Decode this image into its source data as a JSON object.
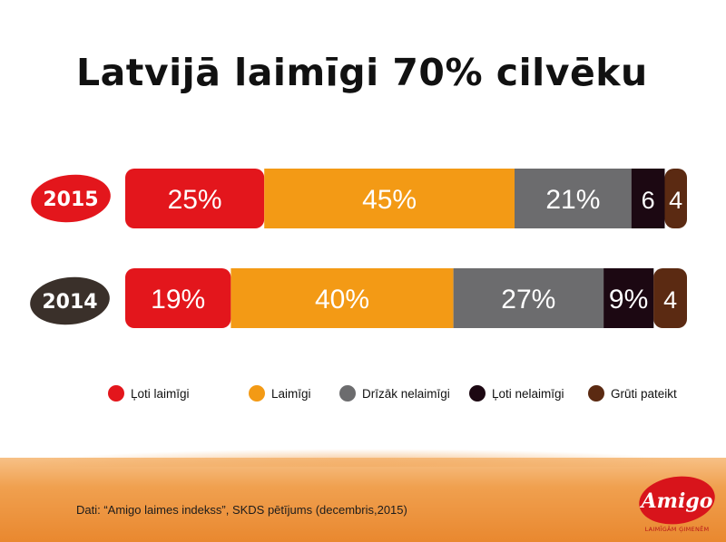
{
  "title": "Latvijā laimīgi 70% cilvēku",
  "source": "Dati: “Amigo laimes indekss”, SKDS pētījums (decembris,2015)",
  "logo": {
    "text": "Amigo",
    "tagline": "LAIMĪGĀM ĢIMENĒM"
  },
  "colors": {
    "loti_laimigi": "#e3161c",
    "laimigi": "#f39a15",
    "drizak_nelaimigi": "#6c6c6e",
    "loti_nelaimigi": "#1c0812",
    "gruti_pateikt": "#5b2a12",
    "badge_2015": "#e3161c",
    "badge_2014": "#3a302a"
  },
  "chart_data": {
    "type": "bar",
    "stacked": true,
    "orientation": "horizontal",
    "title": "Latvijā laimīgi 70% cilvēku",
    "categories": [
      "2015",
      "2014"
    ],
    "series": [
      {
        "name": "Ļoti laimīgi",
        "values": [
          25,
          19
        ],
        "labels": [
          "25%",
          "19%"
        ]
      },
      {
        "name": "Laimīgi",
        "values": [
          45,
          40
        ],
        "labels": [
          "45%",
          "40%"
        ]
      },
      {
        "name": "Drīzāk nelaimīgi",
        "values": [
          21,
          27
        ],
        "labels": [
          "21%",
          "27%"
        ]
      },
      {
        "name": "Ļoti nelaimīgi",
        "values": [
          6,
          9
        ],
        "labels": [
          "6",
          "9%"
        ]
      },
      {
        "name": "Grūti pateikt",
        "values": [
          4,
          4
        ],
        "labels": [
          "4",
          "4"
        ]
      }
    ],
    "xlim": [
      0,
      101
    ],
    "legend": "bottom",
    "grid": false
  }
}
